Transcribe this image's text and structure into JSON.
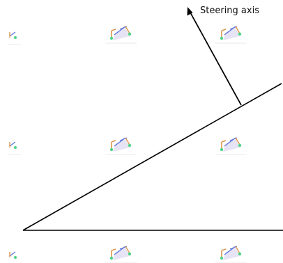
{
  "diagram": {
    "steering_axis_label": "Steering axis",
    "line_color": "#000000",
    "watermark": {
      "icon": "suspension-linkage-icon",
      "colors": {
        "link": "#d9822b",
        "arm": "#3c5bd6",
        "shade": "#c9c3e8",
        "joint": "#2ecc71",
        "base": "#bdbdbd"
      }
    }
  }
}
